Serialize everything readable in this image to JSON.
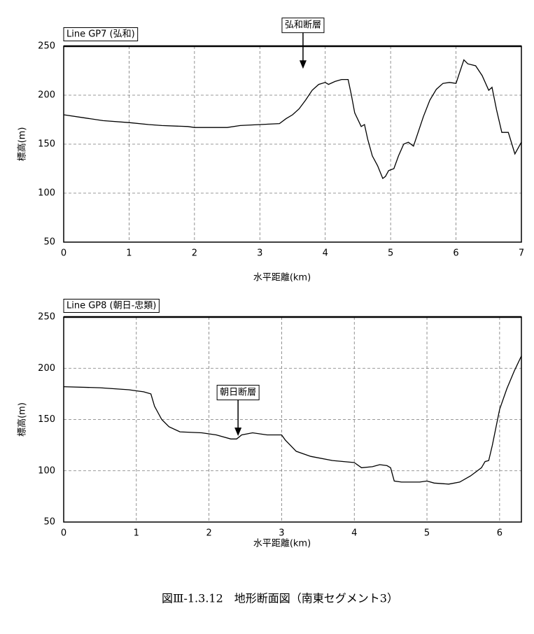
{
  "chart_data": [
    {
      "type": "line",
      "title": "Line GP7 (弘和)",
      "x_label": "水平距離(km)",
      "y_label": "標高(m)",
      "xlim": [
        0,
        7
      ],
      "xticks": [
        0,
        1,
        2,
        3,
        4,
        5,
        6,
        7
      ],
      "ylim": [
        50,
        250
      ],
      "yticks": [
        50,
        100,
        150,
        200,
        250
      ],
      "grid": true,
      "color": "#000000",
      "x": [
        0,
        0.3,
        0.6,
        1,
        1.3,
        1.5,
        1.9,
        2,
        2.5,
        2.7,
        3,
        3.3,
        3.4,
        3.5,
        3.6,
        3.7,
        3.8,
        3.9,
        4,
        4.05,
        4.15,
        4.25,
        4.35,
        4.4,
        4.45,
        4.55,
        4.6,
        4.65,
        4.72,
        4.8,
        4.88,
        4.92,
        4.97,
        5.05,
        5.12,
        5.2,
        5.27,
        5.35,
        5.42,
        5.5,
        5.6,
        5.7,
        5.8,
        5.9,
        6,
        6.05,
        6.12,
        6.18,
        6.3,
        6.4,
        6.5,
        6.55,
        6.62,
        6.7,
        6.8,
        6.9,
        7
      ],
      "values": [
        180,
        177,
        174,
        172,
        170,
        169,
        168,
        167,
        167,
        169,
        170,
        171,
        176,
        180,
        186,
        195,
        205,
        211,
        213,
        211,
        214,
        216,
        216,
        200,
        182,
        168,
        170,
        155,
        138,
        128,
        115,
        117,
        123,
        125,
        138,
        150,
        152,
        148,
        162,
        178,
        195,
        206,
        212,
        213,
        212,
        222,
        236,
        232,
        230,
        220,
        205,
        208,
        185,
        162,
        162,
        140,
        152
      ],
      "annotations": [
        {
          "text": "弘和断層",
          "x": 3.66,
          "y": 227
        }
      ]
    },
    {
      "type": "line",
      "title": "Line GP8 (朝日-忠類)",
      "x_label": "水平距離(km)",
      "y_label": "標高(m)",
      "xlim": [
        0,
        6.3
      ],
      "xticks": [
        0,
        1,
        2,
        3,
        4,
        5,
        6
      ],
      "ylim": [
        50,
        250
      ],
      "yticks": [
        50,
        100,
        150,
        200,
        250
      ],
      "grid": true,
      "color": "#000000",
      "x": [
        0,
        0.5,
        0.9,
        1.0,
        1.1,
        1.2,
        1.25,
        1.35,
        1.45,
        1.6,
        1.9,
        2.1,
        2.3,
        2.38,
        2.45,
        2.6,
        2.8,
        3.0,
        3.05,
        3.2,
        3.4,
        3.7,
        4.0,
        4.1,
        4.25,
        4.35,
        4.45,
        4.5,
        4.55,
        4.65,
        4.9,
        5.0,
        5.1,
        5.3,
        5.45,
        5.6,
        5.75,
        5.8,
        5.85,
        5.9,
        6.0,
        6.1,
        6.2,
        6.3
      ],
      "values": [
        182,
        181,
        179,
        178,
        177,
        175,
        163,
        150,
        143,
        138,
        137,
        135,
        131,
        131,
        135,
        137,
        135,
        135,
        130,
        119,
        114,
        110,
        108,
        103,
        104,
        106,
        105,
        103,
        90,
        89,
        89,
        90,
        88,
        87,
        89,
        95,
        103,
        109,
        110,
        125,
        160,
        180,
        197,
        212
      ],
      "annotations": [
        {
          "text": "朝日断層",
          "x": 2.4,
          "y": 134
        }
      ]
    }
  ],
  "caption": "図Ⅲ-1.3.12　地形断面図（南東セグメント3）"
}
